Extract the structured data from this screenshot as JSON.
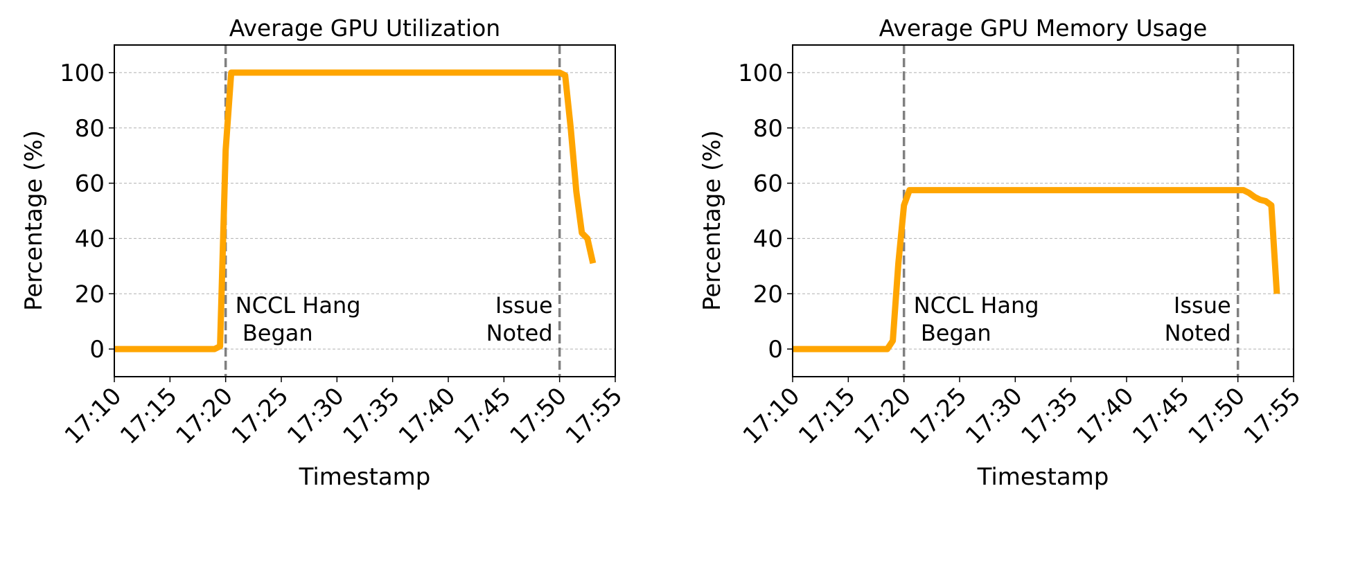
{
  "chart_data": [
    {
      "type": "line",
      "title": "Average GPU Utilization",
      "xlabel": "Timestamp",
      "ylabel": "Percentage (%)",
      "xlim": [
        "17:10:00",
        "17:55:00"
      ],
      "ylim": [
        -10,
        110
      ],
      "xticks": [
        "17:10",
        "17:15",
        "17:20",
        "17:25",
        "17:30",
        "17:35",
        "17:40",
        "17:45",
        "17:50",
        "17:55"
      ],
      "yticks": [
        0,
        20,
        40,
        60,
        80,
        100
      ],
      "grid": "horizontal dashed",
      "line_color": "#FFA500",
      "series": [
        {
          "x": [
            "17:10:00",
            "17:19:00",
            "17:19:30",
            "17:20:00",
            "17:20:30",
            "17:50:00",
            "17:50:30",
            "17:51:00",
            "17:51:30",
            "17:52:00",
            "17:52:30",
            "17:53:00"
          ],
          "y": [
            0,
            0,
            1,
            72,
            100,
            100,
            99,
            80,
            57,
            42,
            40,
            31
          ]
        }
      ],
      "vlines": [
        {
          "x": "17:20:00",
          "label": [
            "NCCL Hang",
            " Began"
          ],
          "color": "#808080"
        },
        {
          "x": "17:50:00",
          "label": [
            "Issue",
            "Noted"
          ],
          "color": "#808080"
        }
      ]
    },
    {
      "type": "line",
      "title": "Average GPU Memory Usage",
      "xlabel": "Timestamp",
      "ylabel": "Percentage (%)",
      "xlim": [
        "17:10:00",
        "17:55:00"
      ],
      "ylim": [
        -10,
        110
      ],
      "xticks": [
        "17:10",
        "17:15",
        "17:20",
        "17:25",
        "17:30",
        "17:35",
        "17:40",
        "17:45",
        "17:50",
        "17:55"
      ],
      "yticks": [
        0,
        20,
        40,
        60,
        80,
        100
      ],
      "grid": "horizontal dashed",
      "line_color": "#FFA500",
      "series": [
        {
          "x": [
            "17:10:00",
            "17:18:30",
            "17:19:00",
            "17:19:30",
            "17:20:00",
            "17:20:30",
            "17:50:00",
            "17:50:30",
            "17:51:00",
            "17:51:30",
            "17:52:00",
            "17:52:30",
            "17:53:00",
            "17:53:30"
          ],
          "y": [
            0,
            0,
            3,
            31,
            52,
            57.5,
            57.5,
            57.5,
            56.5,
            55,
            54,
            53.5,
            52,
            20
          ]
        }
      ],
      "vlines": [
        {
          "x": "17:20:00",
          "label": [
            "NCCL Hang",
            " Began"
          ],
          "color": "#808080"
        },
        {
          "x": "17:50:00",
          "label": [
            "Issue",
            "Noted"
          ],
          "color": "#808080"
        }
      ]
    }
  ]
}
